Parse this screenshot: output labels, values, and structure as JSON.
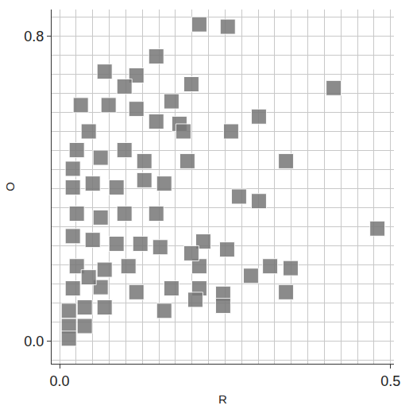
{
  "chart_data": {
    "type": "scatter",
    "x_label": "R",
    "y_label": "O",
    "marker": "square",
    "color": "#777777",
    "grid": true,
    "xlim": [
      -0.012,
      0.505
    ],
    "ylim": [
      -0.06,
      0.87
    ],
    "xticks": [
      {
        "value": 0,
        "label": "0.0"
      },
      {
        "value": 0.5,
        "label": "0.5"
      }
    ],
    "yticks": [
      {
        "value": 0,
        "label": "0.0"
      },
      {
        "value": 0.8,
        "label": "0.8"
      }
    ],
    "x": [
      0.211,
      0.254,
      0.146,
      0.068,
      0.116,
      0.098,
      0.199,
      0.414,
      0.032,
      0.074,
      0.116,
      0.169,
      0.301,
      0.259,
      0.146,
      0.181,
      0.026,
      0.062,
      0.098,
      0.128,
      0.193,
      0.342,
      0.02,
      0.05,
      0.086,
      0.128,
      0.158,
      0.271,
      0.301,
      0.026,
      0.062,
      0.098,
      0.146,
      0.48,
      0.02,
      0.05,
      0.086,
      0.122,
      0.152,
      0.217,
      0.253,
      0.026,
      0.068,
      0.104,
      0.211,
      0.318,
      0.349,
      0.02,
      0.062,
      0.116,
      0.169,
      0.211,
      0.247,
      0.289,
      0.342,
      0.014,
      0.038,
      0.068,
      0.158,
      0.247,
      0.205,
      0.014,
      0.038,
      0.014,
      0.044,
      0.02,
      0.044,
      0.199,
      0.187
    ],
    "y": [
      0.831,
      0.825,
      0.747,
      0.707,
      0.697,
      0.668,
      0.674,
      0.664,
      0.619,
      0.619,
      0.609,
      0.629,
      0.589,
      0.55,
      0.576,
      0.57,
      0.501,
      0.481,
      0.501,
      0.472,
      0.472,
      0.472,
      0.403,
      0.413,
      0.403,
      0.422,
      0.413,
      0.379,
      0.367,
      0.334,
      0.324,
      0.334,
      0.334,
      0.295,
      0.275,
      0.265,
      0.255,
      0.255,
      0.246,
      0.261,
      0.24,
      0.196,
      0.187,
      0.196,
      0.196,
      0.196,
      0.191,
      0.138,
      0.141,
      0.128,
      0.138,
      0.138,
      0.124,
      0.171,
      0.128,
      0.079,
      0.088,
      0.088,
      0.079,
      0.092,
      0.108,
      0.039,
      0.039,
      0.006,
      0.55,
      0.452,
      0.167,
      0.23,
      0.55
    ]
  }
}
